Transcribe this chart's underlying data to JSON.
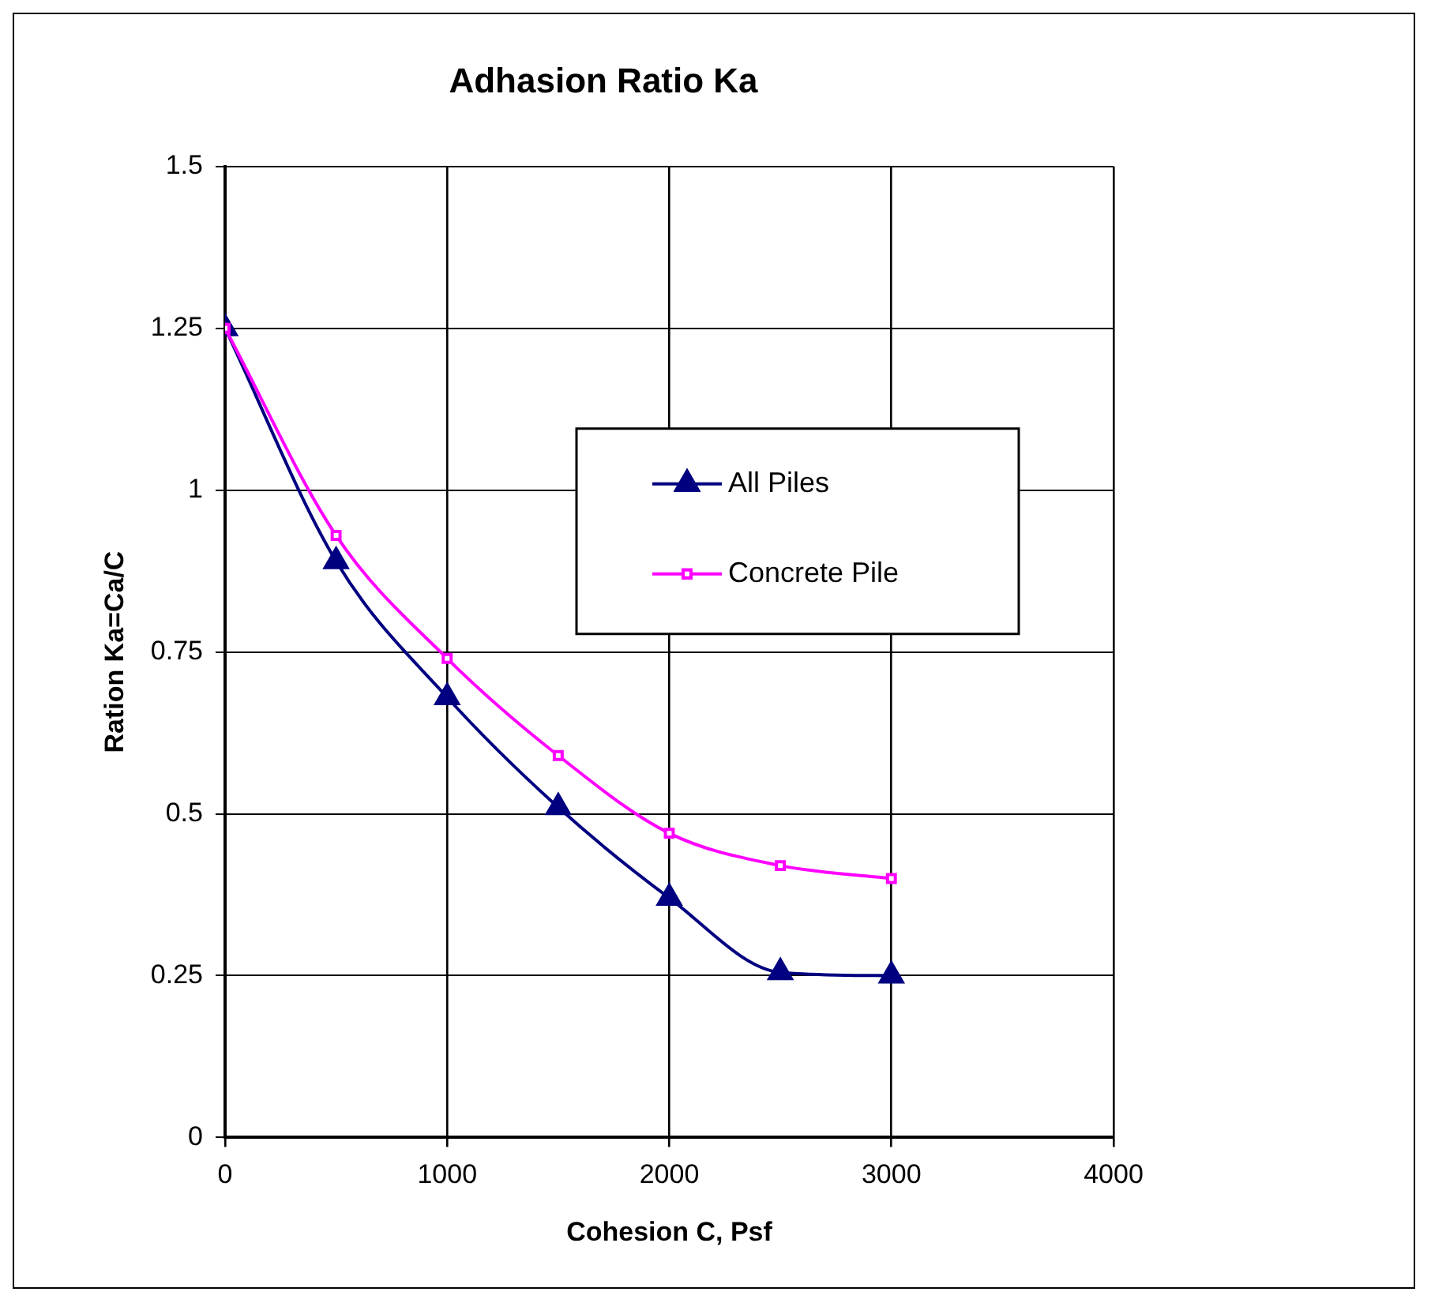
{
  "chart_data": {
    "type": "line",
    "title": "Adhasion Ratio Ka",
    "xlabel": "Cohesion C, Psf",
    "ylabel": "Ration Ka=Ca/C",
    "x": [
      0,
      500,
      1000,
      1500,
      2000,
      2500,
      3000
    ],
    "series": [
      {
        "name": "All Piles",
        "color": "#000080",
        "marker": "triangle",
        "values": [
          1.25,
          0.89,
          0.68,
          0.51,
          0.37,
          0.255,
          0.25
        ]
      },
      {
        "name": "Concrete Pile",
        "color": "#ff00ff",
        "marker": "square",
        "values": [
          1.25,
          0.93,
          0.74,
          0.59,
          0.47,
          0.42,
          0.4
        ]
      }
    ],
    "xlim": [
      0,
      4000
    ],
    "xticks": [
      0,
      1000,
      2000,
      3000,
      4000
    ],
    "ylim": [
      0,
      1.5
    ],
    "yticks": [
      0,
      0.25,
      0.5,
      0.75,
      1,
      1.25,
      1.5
    ],
    "grid": true,
    "legend": "right"
  }
}
